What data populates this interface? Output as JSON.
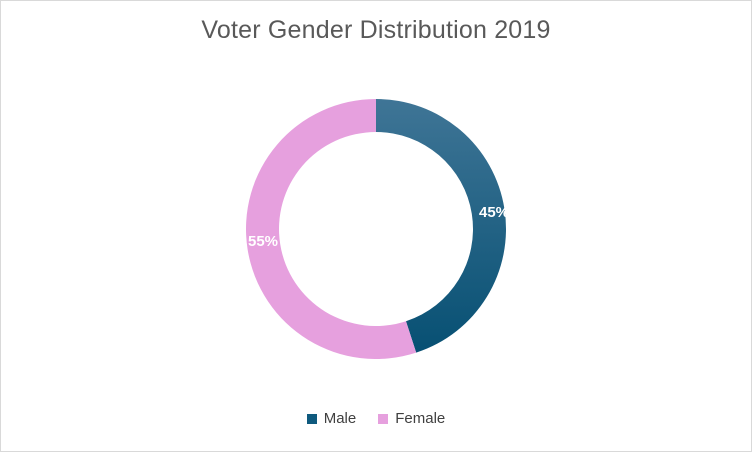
{
  "chart_data": {
    "type": "pie",
    "variant": "donut",
    "title": "Voter Gender Distribution 2019",
    "categories": [
      "Male",
      "Female"
    ],
    "values": [
      45,
      55
    ],
    "unit": "%",
    "data_labels": [
      "45%",
      "55%"
    ],
    "colors": [
      "#0f5a7e",
      "#e6a0de"
    ],
    "legend_position": "bottom"
  }
}
